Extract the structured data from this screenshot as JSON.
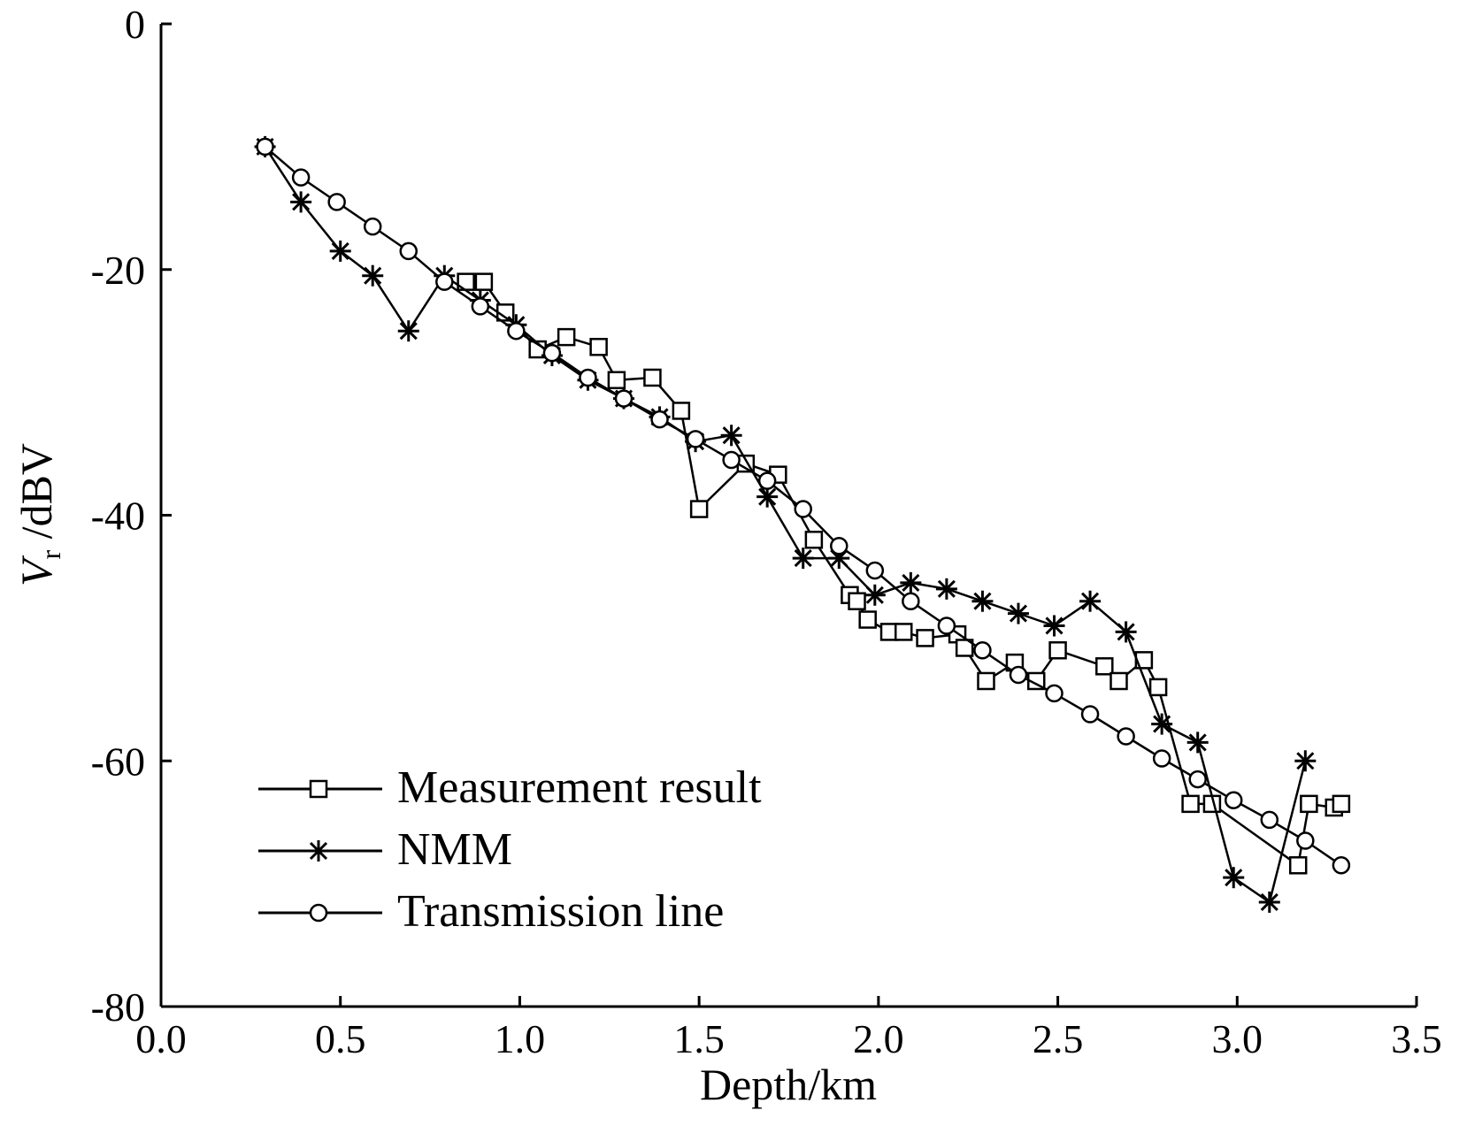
{
  "chart_data": {
    "type": "line",
    "title": "",
    "xlabel": "Depth/km",
    "ylabel": {
      "main": "V",
      "subscript": "r",
      "unit": " /dBV"
    },
    "xlim": [
      0.0,
      3.5
    ],
    "ylim": [
      -80,
      0
    ],
    "x_ticks": [
      0.0,
      0.5,
      1.0,
      1.5,
      2.0,
      2.5,
      3.0,
      3.5
    ],
    "x_tick_labels": [
      "0.0",
      "0.5",
      "1.0",
      "1.5",
      "2.0",
      "2.5",
      "3.0",
      "3.5"
    ],
    "y_ticks": [
      0,
      -20,
      -40,
      -60,
      -80
    ],
    "y_tick_labels": [
      "0",
      "-20",
      "-40",
      "-60",
      "-80"
    ],
    "grid": false,
    "legend_position": "bottom-left",
    "series": [
      {
        "name": "Measurement result",
        "marker": "square",
        "x": [
          0.85,
          0.9,
          0.96,
          1.05,
          1.13,
          1.22,
          1.27,
          1.37,
          1.45,
          1.5,
          1.63,
          1.72,
          1.82,
          1.92,
          1.94,
          1.97,
          2.03,
          2.07,
          2.13,
          2.22,
          2.24,
          2.3,
          2.38,
          2.44,
          2.5,
          2.63,
          2.67,
          2.74,
          2.78,
          2.87,
          2.93,
          3.17,
          3.2,
          3.27,
          3.29
        ],
        "y": [
          -21,
          -21,
          -23.5,
          -26.5,
          -25.5,
          -26.3,
          -29,
          -28.8,
          -31.5,
          -39.5,
          -35.8,
          -36.7,
          -42,
          -46.5,
          -47,
          -48.5,
          -49.5,
          -49.5,
          -50,
          -49.7,
          -50.8,
          -53.5,
          -52,
          -53.5,
          -51,
          -52.3,
          -53.5,
          -51.8,
          -54,
          -63.5,
          -63.5,
          -68.5,
          -63.5,
          -63.8,
          -63.5
        ]
      },
      {
        "name": "NMM",
        "marker": "asterisk",
        "x": [
          0.29,
          0.39,
          0.5,
          0.59,
          0.69,
          0.79,
          0.89,
          0.99,
          1.09,
          1.19,
          1.29,
          1.39,
          1.49,
          1.59,
          1.69,
          1.79,
          1.89,
          1.99,
          2.09,
          2.19,
          2.29,
          2.39,
          2.49,
          2.59,
          2.69,
          2.79,
          2.89,
          2.99,
          3.09,
          3.19
        ],
        "y": [
          -10,
          -14.5,
          -18.5,
          -20.5,
          -25,
          -20.5,
          -22.5,
          -24.5,
          -27,
          -29,
          -30.5,
          -32,
          -34,
          -33.5,
          -38.5,
          -43.5,
          -43.5,
          -46.5,
          -45.5,
          -46,
          -47,
          -48,
          -49,
          -47,
          -49.5,
          -57,
          -58.5,
          -69.5,
          -71.5,
          -60
        ]
      },
      {
        "name": "Transmission line",
        "marker": "circle",
        "x": [
          0.29,
          0.39,
          0.49,
          0.59,
          0.69,
          0.79,
          0.89,
          0.99,
          1.09,
          1.19,
          1.29,
          1.39,
          1.49,
          1.59,
          1.69,
          1.79,
          1.89,
          1.99,
          2.09,
          2.19,
          2.29,
          2.39,
          2.49,
          2.59,
          2.69,
          2.79,
          2.89,
          2.99,
          3.09,
          3.19,
          3.29
        ],
        "y": [
          -10,
          -12.5,
          -14.5,
          -16.5,
          -18.5,
          -21,
          -23,
          -25,
          -26.8,
          -28.8,
          -30.5,
          -32.2,
          -33.8,
          -35.5,
          -37.2,
          -39.5,
          -42.5,
          -44.5,
          -47,
          -49,
          -51,
          -53,
          -54.5,
          -56.2,
          -58,
          -59.8,
          -61.5,
          -63.2,
          -64.8,
          -66.5,
          -68.5
        ]
      }
    ]
  }
}
